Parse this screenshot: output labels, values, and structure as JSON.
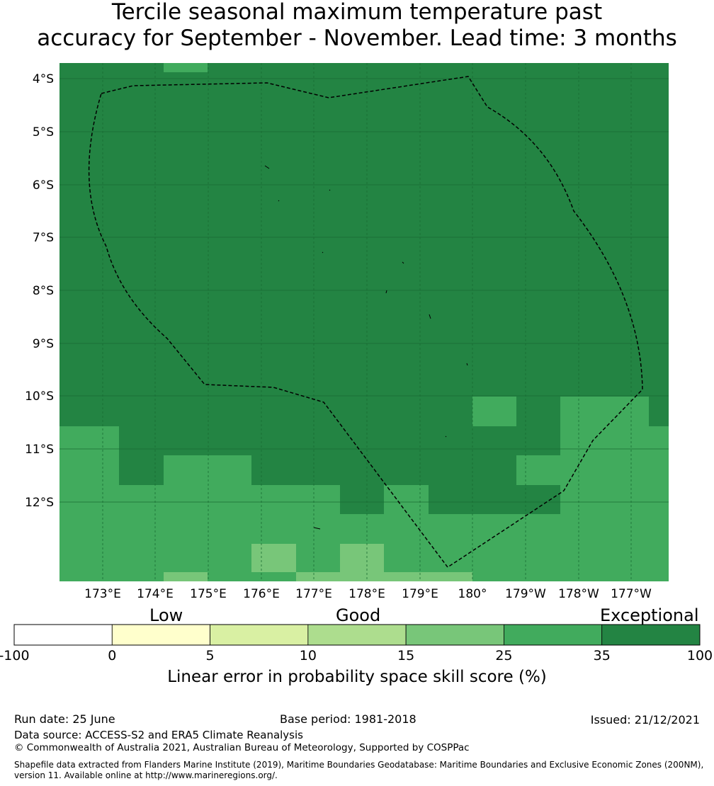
{
  "title_line1": "Tercile seasonal maximum temperature past",
  "title_line2": "accuracy for September - November. Lead time: 3 months",
  "map": {
    "lat_labels": [
      "4°S",
      "5°S",
      "6°S",
      "7°S",
      "8°S",
      "9°S",
      "10°S",
      "11°S",
      "12°S"
    ],
    "lon_labels": [
      "173°E",
      "174°E",
      "175°E",
      "176°E",
      "177°E",
      "178°E",
      "179°E",
      "180°",
      "179°W",
      "178°W",
      "177°W"
    ],
    "boundary_line": "dashed"
  },
  "colorbar": {
    "categories": [
      "Low",
      "Good",
      "Exceptional"
    ],
    "ticks": [
      "-100",
      "0",
      "5",
      "10",
      "15",
      "25",
      "35",
      "100"
    ],
    "colors": [
      "#ffffff",
      "#ffffcc",
      "#d9f0a3",
      "#addd8e",
      "#78c679",
      "#41ab5d",
      "#238443"
    ],
    "label": "Linear error in probability space skill score (%)"
  },
  "footer": {
    "run_date": "Run date: 25 June",
    "base_period": "Base period: 1981-2018",
    "issued": "Issued: 21/12/2021",
    "data_source": "Data source: ACCESS-S2 and ERA5 Climate Reanalysis",
    "copyright": "© Commonwealth of Australia 2021, Australian Bureau of Meteorology, Supported by COSPPac",
    "shapefile_line1": "Shapefile data extracted from Flanders Marine Institute (2019), Maritime Boundaries Geodatabase: Maritime Boundaries and Exclusive Economic Zones (200NM),",
    "shapefile_line2": "version 11. Available online at http://www.marineregions.org/."
  }
}
